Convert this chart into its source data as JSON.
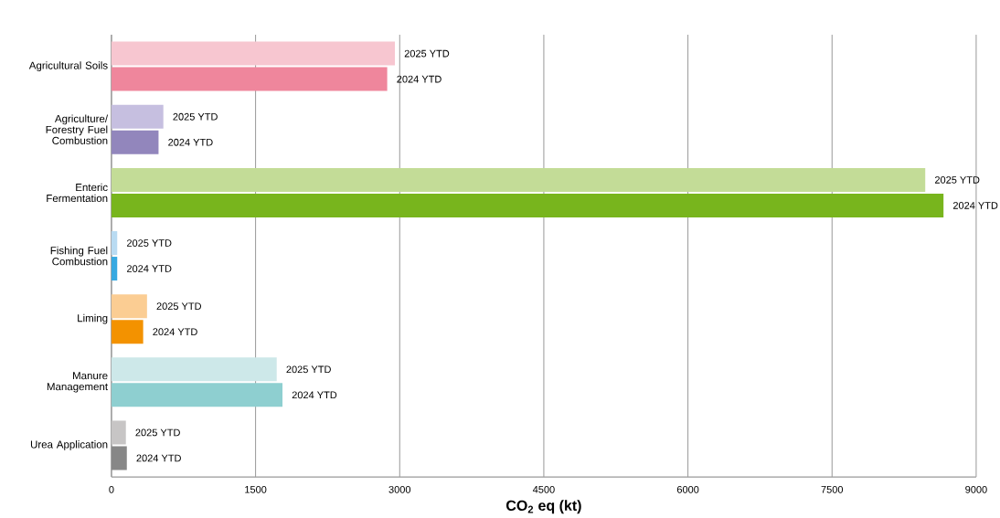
{
  "chart_data": {
    "type": "bar",
    "orientation": "horizontal",
    "xlabel": "CO$_{2}$ eq (kt)",
    "categories": [
      "Agricultural Soils",
      "Agriculture/ Forestry Fuel Combustion",
      "Enteric Fermentation",
      "Fishing Fuel Combustion",
      "Liming",
      "Manure Management",
      "Urea Application"
    ],
    "series": [
      {
        "name": "2025 YTD",
        "colors": [
          "#f7c6d0",
          "#c6bfe0",
          "#c3dc97",
          "#b9dbf2",
          "#fbcd93",
          "#cde8e9",
          "#c7c5c5"
        ],
        "values": [
          2950,
          540,
          8470,
          60,
          370,
          1720,
          150
        ]
      },
      {
        "name": "2024 YTD",
        "colors": [
          "#ef869c",
          "#9286bc",
          "#78b51d",
          "#37a9e1",
          "#f39200",
          "#8ecfd0",
          "#878787"
        ],
        "values": [
          2870,
          490,
          8660,
          60,
          330,
          1780,
          160
        ]
      }
    ],
    "xlim": [
      0,
      9000
    ],
    "xticks": [
      0,
      1500,
      3000,
      4500,
      6000,
      7500,
      9000
    ],
    "grid": "x"
  }
}
